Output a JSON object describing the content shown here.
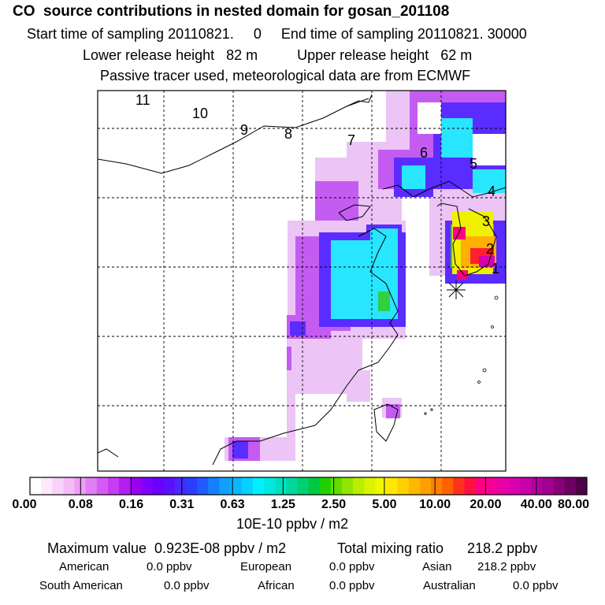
{
  "header": {
    "title": "CO  source contributions in nested domain for gosan_201108",
    "sampling": "Start time of sampling 20110821.     0     End time of sampling 20110821. 30000",
    "release": "Lower release height   82 m          Upper release height   62 m",
    "note": "Passive tracer used, meteorological data are from ECMWF"
  },
  "map": {
    "region_labels": [
      "11",
      "10",
      "9",
      "8",
      "7",
      "6",
      "5",
      "4",
      "3",
      "2",
      "1"
    ],
    "receptor_marker": "gosan-receptor"
  },
  "colorbar": {
    "ticks": [
      "0.00",
      "0.08",
      "0.16",
      "0.31",
      "0.63",
      "1.25",
      "2.50",
      "5.00",
      "10.00",
      "20.00",
      "40.00",
      "80.00"
    ],
    "unit": "10E-10 ppbv / m2",
    "colors": [
      "#ffffff",
      "#fde8fd",
      "#f9d2fa",
      "#f3bcf7",
      "#ec9ef6",
      "#e27ef4",
      "#d55cf3",
      "#c73cf2",
      "#b31df0",
      "#9b00ef",
      "#8000ff",
      "#6a00ff",
      "#5a10ff",
      "#4a28ff",
      "#2d3cff",
      "#1f5cff",
      "#1580ff",
      "#10a0ff",
      "#0ab8ff",
      "#08d0ff",
      "#00f0ff",
      "#00e8e0",
      "#00e0c0",
      "#00d8a0",
      "#00d070",
      "#00c840",
      "#20d000",
      "#60dc00",
      "#90e600",
      "#b8ee00",
      "#d8f400",
      "#f0f800",
      "#ffe800",
      "#ffd000",
      "#ffb800",
      "#ffa000",
      "#ff8000",
      "#ff6000",
      "#ff3020",
      "#ff1040",
      "#ff0080",
      "#f40098",
      "#e800a8",
      "#d800b0",
      "#c800a8",
      "#b400a0",
      "#a00090",
      "#880078",
      "#6e0060",
      "#500048"
    ]
  },
  "footer": {
    "max_label": "Maximum value  0.923E-08 ppbv / m2",
    "total_label": "Total mixing ratio      218.2 ppbv",
    "regions": [
      {
        "name": "American",
        "value": "0.0 ppbv"
      },
      {
        "name": "European",
        "value": "0.0 ppbv"
      },
      {
        "name": "Asian",
        "value": "218.2 ppbv"
      },
      {
        "name": "South American",
        "value": "0.0 ppbv"
      },
      {
        "name": "African",
        "value": "0.0 ppbv"
      },
      {
        "name": "Australian",
        "value": "0.0 ppbv"
      }
    ]
  }
}
